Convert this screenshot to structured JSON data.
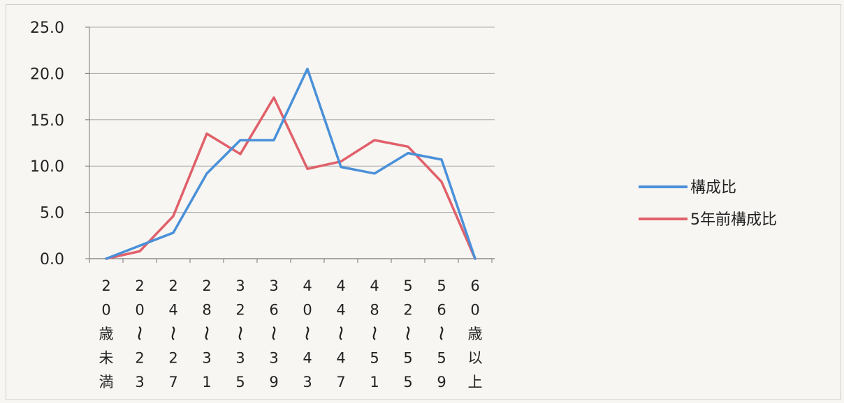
{
  "chart_data": {
    "type": "line",
    "categories": [
      "20歳未満",
      "20～23",
      "24～27",
      "28～31",
      "32～35",
      "36～39",
      "40～43",
      "44～47",
      "48～51",
      "52～55",
      "56～59",
      "60歳以上"
    ],
    "category_label_lines": [
      [
        "2",
        "0",
        "歳",
        "未",
        "満"
      ],
      [
        "2",
        "0",
        "～",
        "2",
        "3"
      ],
      [
        "2",
        "4",
        "～",
        "2",
        "7"
      ],
      [
        "2",
        "8",
        "～",
        "3",
        "1"
      ],
      [
        "3",
        "2",
        "～",
        "3",
        "5"
      ],
      [
        "3",
        "6",
        "～",
        "3",
        "9"
      ],
      [
        "4",
        "0",
        "～",
        "4",
        "3"
      ],
      [
        "4",
        "4",
        "～",
        "4",
        "7"
      ],
      [
        "4",
        "8",
        "～",
        "5",
        "1"
      ],
      [
        "5",
        "2",
        "～",
        "5",
        "5"
      ],
      [
        "5",
        "6",
        "～",
        "5",
        "9"
      ],
      [
        "6",
        "0",
        "歳",
        "以",
        "上"
      ]
    ],
    "series": [
      {
        "name": "構成比",
        "color": "#4a90d9",
        "values": [
          0.0,
          1.4,
          2.8,
          9.2,
          12.8,
          12.8,
          20.5,
          9.9,
          9.2,
          11.4,
          10.7,
          0.0
        ]
      },
      {
        "name": "5年前構成比",
        "color": "#e0606a",
        "values": [
          0.0,
          0.8,
          4.6,
          13.5,
          11.3,
          17.4,
          9.7,
          10.5,
          12.8,
          12.1,
          8.3,
          0.0
        ]
      }
    ],
    "ylim": [
      0,
      25
    ],
    "yticks": [
      "0.0",
      "5.0",
      "10.0",
      "15.0",
      "20.0",
      "25.0"
    ],
    "grid": true,
    "legend_position": "right"
  }
}
